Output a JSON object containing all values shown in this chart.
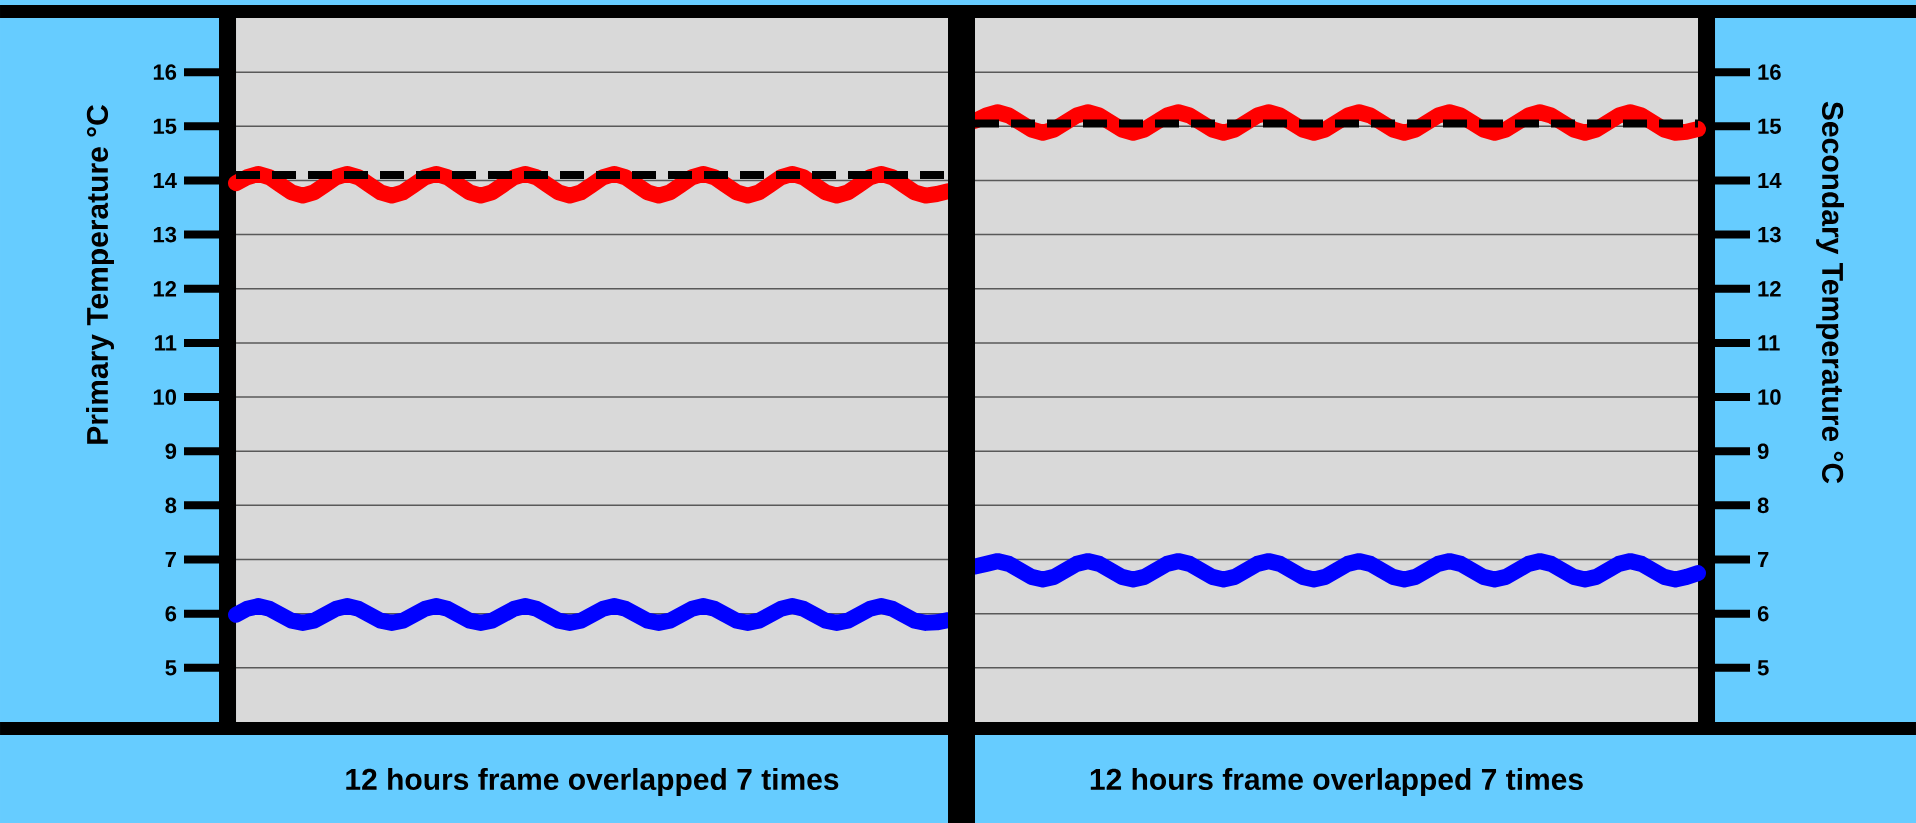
{
  "chart_data": [
    {
      "type": "line",
      "xlabel": "12 hours frame overlapped 7 times",
      "ylabel": "Primary Temperature °C",
      "categories": [
        null,
        null,
        null,
        null,
        null,
        null,
        null,
        null,
        null,
        null,
        null,
        null,
        null,
        null,
        null,
        null,
        null,
        null,
        null,
        null,
        null,
        null,
        null,
        null,
        null,
        null,
        null,
        null,
        null,
        null,
        null,
        null,
        null,
        null,
        null,
        null,
        null,
        null,
        null,
        null,
        null,
        null,
        null,
        null,
        null,
        null,
        null,
        null,
        null,
        null,
        null,
        null,
        null,
        null,
        null,
        null,
        null,
        null,
        null,
        null,
        null,
        null,
        null,
        null,
        null
      ],
      "series": [
        {
          "color": "#ff0000",
          "values": [
            13.95,
            14.06,
            14.12,
            14.06,
            13.92,
            13.78,
            13.72,
            13.78,
            13.92,
            14.06,
            14.12,
            14.06,
            13.92,
            13.78,
            13.72,
            13.78,
            13.92,
            14.06,
            14.12,
            14.06,
            13.92,
            13.78,
            13.72,
            13.78,
            13.92,
            14.06,
            14.12,
            14.06,
            13.92,
            13.78,
            13.72,
            13.78,
            13.92,
            14.06,
            14.12,
            14.06,
            13.92,
            13.78,
            13.72,
            13.78,
            13.92,
            14.06,
            14.12,
            14.06,
            13.92,
            13.78,
            13.72,
            13.78,
            13.92,
            14.06,
            14.12,
            14.06,
            13.92,
            13.78,
            13.72,
            13.78,
            13.92,
            14.06,
            14.12,
            14.06,
            13.92,
            13.78,
            13.72,
            13.75,
            13.8
          ]
        },
        {
          "color": "#0000ff",
          "values": [
            5.98,
            6.09,
            6.14,
            6.09,
            5.98,
            5.87,
            5.83,
            5.87,
            5.98,
            6.09,
            6.14,
            6.09,
            5.98,
            5.87,
            5.83,
            5.87,
            5.98,
            6.09,
            6.14,
            6.09,
            5.98,
            5.87,
            5.83,
            5.87,
            5.98,
            6.09,
            6.14,
            6.09,
            5.98,
            5.87,
            5.83,
            5.87,
            5.98,
            6.09,
            6.14,
            6.09,
            5.98,
            5.87,
            5.83,
            5.87,
            5.98,
            6.09,
            6.14,
            6.09,
            5.98,
            5.87,
            5.83,
            5.87,
            5.98,
            6.09,
            6.14,
            6.09,
            5.98,
            5.87,
            5.83,
            5.87,
            5.98,
            6.09,
            6.14,
            6.09,
            5.98,
            5.87,
            5.83,
            5.84,
            5.88
          ]
        }
      ],
      "ref_lines": [
        {
          "axis": "y",
          "value": 14.1,
          "color": "#000000",
          "line_style": "dashed"
        }
      ],
      "ylim": [
        4,
        17
      ],
      "yticks": [
        5,
        6,
        7,
        8,
        9,
        10,
        11,
        12,
        13,
        14,
        15,
        16
      ],
      "grid": "y"
    },
    {
      "type": "line",
      "xlabel": "12 hours frame overlapped 7 times",
      "ylabel": "Secondary Temperature °C",
      "categories": [
        null,
        null,
        null,
        null,
        null,
        null,
        null,
        null,
        null,
        null,
        null,
        null,
        null,
        null,
        null,
        null,
        null,
        null,
        null,
        null,
        null,
        null,
        null,
        null,
        null,
        null,
        null,
        null,
        null,
        null,
        null,
        null,
        null,
        null,
        null,
        null,
        null,
        null,
        null,
        null,
        null,
        null,
        null,
        null,
        null,
        null,
        null,
        null,
        null,
        null,
        null,
        null,
        null,
        null,
        null,
        null,
        null,
        null,
        null,
        null,
        null,
        null,
        null,
        null,
        null
      ],
      "series": [
        {
          "color": "#ff0000",
          "values": [
            15.1,
            15.2,
            15.26,
            15.2,
            15.07,
            14.94,
            14.88,
            14.94,
            15.07,
            15.2,
            15.26,
            15.2,
            15.07,
            14.94,
            14.88,
            14.94,
            15.07,
            15.2,
            15.26,
            15.2,
            15.07,
            14.94,
            14.88,
            14.94,
            15.07,
            15.2,
            15.26,
            15.2,
            15.07,
            14.94,
            14.88,
            14.94,
            15.07,
            15.2,
            15.26,
            15.2,
            15.07,
            14.94,
            14.88,
            14.94,
            15.07,
            15.2,
            15.26,
            15.2,
            15.07,
            14.94,
            14.88,
            14.94,
            15.07,
            15.2,
            15.26,
            15.2,
            15.07,
            14.94,
            14.88,
            14.94,
            15.07,
            15.2,
            15.26,
            15.2,
            15.07,
            14.94,
            14.88,
            14.9,
            14.95
          ]
        },
        {
          "color": "#0000ff",
          "values": [
            6.87,
            6.92,
            6.97,
            6.92,
            6.8,
            6.68,
            6.63,
            6.68,
            6.8,
            6.92,
            6.97,
            6.92,
            6.8,
            6.68,
            6.63,
            6.68,
            6.8,
            6.92,
            6.97,
            6.92,
            6.8,
            6.68,
            6.63,
            6.68,
            6.8,
            6.92,
            6.97,
            6.92,
            6.8,
            6.68,
            6.63,
            6.68,
            6.8,
            6.92,
            6.97,
            6.92,
            6.8,
            6.68,
            6.63,
            6.68,
            6.8,
            6.92,
            6.97,
            6.92,
            6.8,
            6.68,
            6.63,
            6.68,
            6.8,
            6.92,
            6.97,
            6.92,
            6.8,
            6.68,
            6.63,
            6.68,
            6.8,
            6.92,
            6.97,
            6.92,
            6.8,
            6.68,
            6.63,
            6.68,
            6.75
          ]
        }
      ],
      "ref_lines": [
        {
          "axis": "y",
          "value": 15.05,
          "color": "#000000",
          "line_style": "dashed"
        }
      ],
      "ylim": [
        4,
        17
      ],
      "yticks": [
        5,
        6,
        7,
        8,
        9,
        10,
        11,
        12,
        13,
        14,
        15,
        16
      ],
      "grid": "y"
    }
  ]
}
